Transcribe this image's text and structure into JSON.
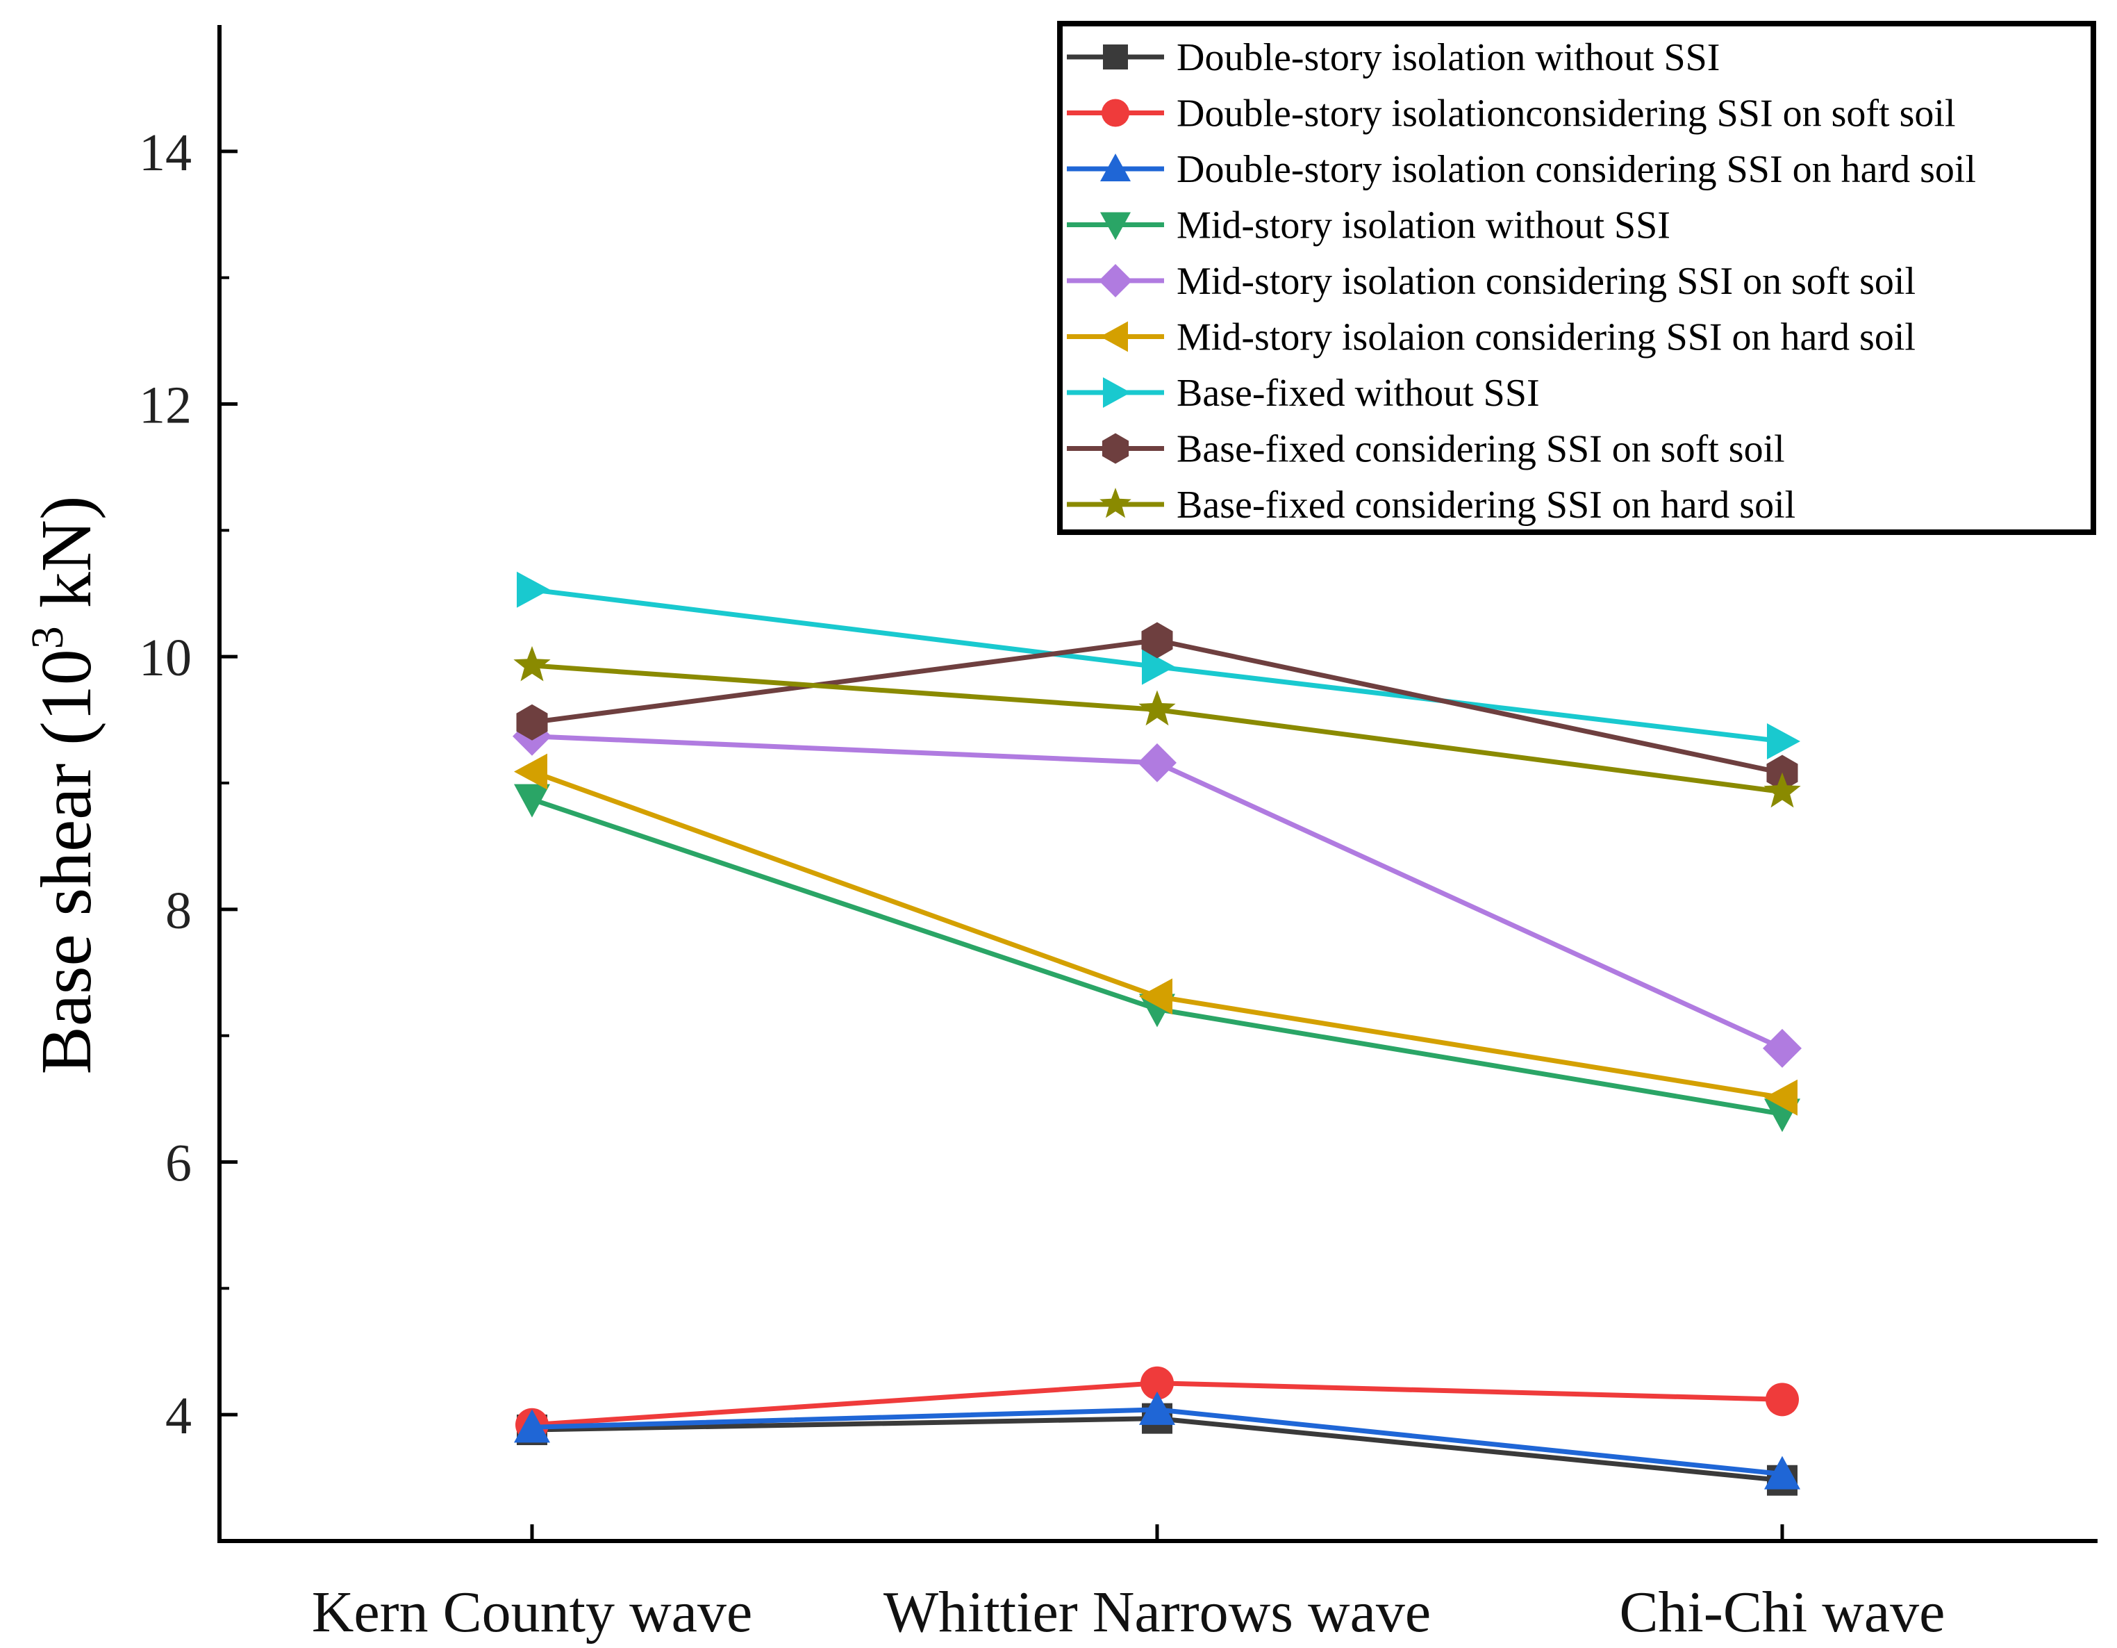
{
  "chart_data": {
    "type": "line",
    "title": "",
    "xlabel": "",
    "ylabel_main": "Base shear (10",
    "ylabel_sup": "3",
    "ylabel_end": " kN)",
    "ylim": [
      3,
      15
    ],
    "yticks": [
      4,
      6,
      8,
      10,
      12,
      14
    ],
    "categories": [
      "Kern County wave",
      "Whittier Narrows wave",
      "Chi-Chi wave"
    ],
    "legend_position": "top-right",
    "series": [
      {
        "name": "Double-story isolation without SSI",
        "color": "#3a3a3a",
        "marker": "square",
        "values": [
          3.88,
          3.97,
          3.48
        ]
      },
      {
        "name": "Double-story isolationconsidering SSI on soft soil",
        "color": "#ef3b3b",
        "marker": "circle",
        "values": [
          3.92,
          4.25,
          4.12
        ]
      },
      {
        "name": "Double-story isolation considering SSI on hard soil",
        "color": "#1f66d6",
        "marker": "triangle-up",
        "values": [
          3.9,
          4.04,
          3.53
        ]
      },
      {
        "name": "Mid-story isolation without SSI",
        "color": "#2aa566",
        "marker": "triangle-down",
        "values": [
          8.87,
          7.21,
          6.38
        ]
      },
      {
        "name": "Mid-story isolation considering SSI on soft soil",
        "color": "#b07be0",
        "marker": "diamond",
        "values": [
          9.37,
          9.16,
          6.9
        ]
      },
      {
        "name": "Mid-story isolaion considering SSI on hard soil",
        "color": "#d4a000",
        "marker": "triangle-left",
        "values": [
          9.09,
          7.31,
          6.51
        ]
      },
      {
        "name": "Base-fixed without SSI",
        "color": "#19c9cf",
        "marker": "triangle-right",
        "values": [
          10.53,
          9.92,
          9.33
        ]
      },
      {
        "name": "Base-fixed considering SSI on soft soil",
        "color": "#6e3f3f",
        "marker": "hexagon",
        "values": [
          9.48,
          10.13,
          9.08
        ]
      },
      {
        "name": "Base-fixed considering SSI on hard soil",
        "color": "#8a8a00",
        "marker": "star",
        "values": [
          9.93,
          9.58,
          8.93
        ]
      }
    ]
  }
}
